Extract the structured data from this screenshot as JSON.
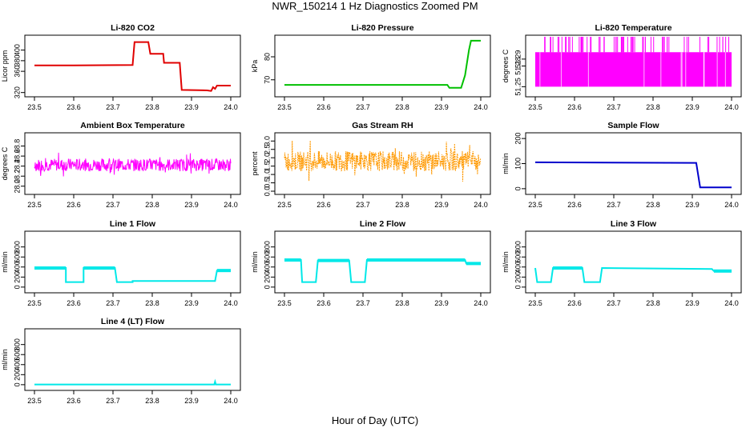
{
  "title": "NWR_150214  1 Hz Diagnostics Zoomed PM",
  "xlabel": "Hour of Day (UTC)",
  "chart_data": [
    {
      "type": "line",
      "title": "Li-820 CO2",
      "ylabel": "Licor ppm",
      "color": "#e00000",
      "xlim": [
        23.5,
        24.0
      ],
      "xticks": [
        "23.5",
        "23.6",
        "23.7",
        "23.8",
        "23.9",
        "24.0"
      ],
      "ylim": [
        318,
        422
      ],
      "yticks": [
        "320",
        "360",
        "380",
        "400"
      ],
      "series": [
        {
          "x": [
            23.5,
            23.6,
            23.75,
            23.755,
            23.79,
            23.795,
            23.828,
            23.83,
            23.87,
            23.875,
            23.94,
            23.95,
            23.955,
            23.96,
            23.965,
            24.0
          ],
          "y": [
            371,
            371,
            372,
            415,
            415,
            393,
            393,
            376,
            376,
            325,
            324,
            323,
            330,
            327,
            333,
            333
          ]
        }
      ]
    },
    {
      "type": "line",
      "title": "Li-820 Pressure",
      "ylabel": "kPa",
      "color": "#00c000",
      "xlim": [
        23.5,
        24.0
      ],
      "xticks": [
        "23.5",
        "23.6",
        "23.7",
        "23.8",
        "23.9",
        "24.0"
      ],
      "ylim": [
        64,
        88
      ],
      "yticks": [
        "70",
        "80"
      ],
      "series": [
        {
          "x": [
            23.5,
            23.915,
            23.92,
            23.95,
            23.96,
            23.97,
            23.975,
            24.0
          ],
          "y": [
            67.8,
            67.8,
            66.5,
            66.5,
            72,
            83,
            87,
            87
          ]
        }
      ]
    },
    {
      "type": "line",
      "title": "Li-820 Temperature",
      "ylabel": "degrees C",
      "color": "#ff00ff",
      "xlim": [
        23.5,
        24.0
      ],
      "xticks": [
        "23.5",
        "23.6",
        "23.7",
        "23.8",
        "23.9",
        "24.0"
      ],
      "ylim": [
        51.24,
        51.32
      ],
      "yticks": [
        "51.25",
        "51.28",
        "51.29"
      ],
      "series": [
        {
          "x": [
            23.5,
            24.0
          ],
          "y": [
            51.25,
            51.3
          ]
        }
      ]
    },
    {
      "type": "line",
      "title": "Ambient Box Temperature",
      "ylabel": "degrees C",
      "color": "#ff00ff",
      "xlim": [
        23.5,
        24.0
      ],
      "xticks": [
        "23.5",
        "23.6",
        "23.7",
        "23.8",
        "23.9",
        "24.0"
      ],
      "ylim": [
        27.9,
        29.0
      ],
      "yticks": [
        "28.0",
        "28.2",
        "28.4",
        "28.6",
        "28.8"
      ],
      "series": [
        {
          "x": [
            23.5,
            24.0
          ],
          "y": [
            28.3,
            28.55
          ]
        }
      ]
    },
    {
      "type": "line",
      "title": "Gas Stream RH",
      "ylabel": "percent",
      "color": "#ff9900",
      "xlim": [
        23.5,
        24.0
      ],
      "xticks": [
        "23.5",
        "23.6",
        "23.7",
        "23.8",
        "23.9",
        "24.0"
      ],
      "ylim": [
        0,
        3.3
      ],
      "yticks": [
        "0.0",
        "0.5",
        "1.0",
        "1.5",
        "2.0",
        "2.5",
        "3.0"
      ],
      "series": [
        {
          "x": [
            23.5,
            24.0
          ],
          "y": [
            1.2,
            2.4
          ]
        }
      ]
    },
    {
      "type": "line",
      "title": "Sample Flow",
      "ylabel": "ml/min",
      "color": "#0000cc",
      "xlim": [
        23.5,
        24.0
      ],
      "xticks": [
        "23.5",
        "23.6",
        "23.7",
        "23.8",
        "23.9",
        "24.0"
      ],
      "ylim": [
        -10,
        210
      ],
      "yticks": [
        "0",
        "100",
        "200"
      ],
      "series": [
        {
          "x": [
            23.5,
            23.91,
            23.92,
            24.0
          ],
          "y": [
            105,
            103,
            5,
            5
          ]
        }
      ]
    },
    {
      "type": "line",
      "title": "Line 1 Flow",
      "ylabel": "ml/min",
      "color": "#00e8e8",
      "xlim": [
        23.5,
        24.0
      ],
      "xticks": [
        "23.5",
        "23.6",
        "23.7",
        "23.8",
        "23.9",
        "24.0"
      ],
      "ylim": [
        -50,
        1050
      ],
      "yticks": [
        "0",
        "200",
        "400",
        "600",
        "800"
      ],
      "series": [
        {
          "x": [
            23.5,
            23.58,
            23.58,
            23.625,
            23.625,
            23.705,
            23.71,
            23.75,
            23.75,
            23.96,
            23.965,
            24.0
          ],
          "y": [
            380,
            380,
            100,
            100,
            380,
            380,
            100,
            100,
            120,
            120,
            330,
            330
          ]
        }
      ]
    },
    {
      "type": "line",
      "title": "Line 2 Flow",
      "ylabel": "ml/min",
      "color": "#00e8e8",
      "xlim": [
        23.5,
        24.0
      ],
      "xticks": [
        "23.5",
        "23.6",
        "23.7",
        "23.8",
        "23.9",
        "24.0"
      ],
      "ylim": [
        -50,
        1050
      ],
      "yticks": [
        "0",
        "200",
        "400",
        "600",
        "800"
      ],
      "series": [
        {
          "x": [
            23.5,
            23.542,
            23.545,
            23.58,
            23.585,
            23.665,
            23.67,
            23.705,
            23.71,
            23.96,
            23.963,
            24.0
          ],
          "y": [
            540,
            540,
            100,
            100,
            530,
            530,
            100,
            100,
            540,
            540,
            470,
            470
          ]
        }
      ]
    },
    {
      "type": "line",
      "title": "Line 3 Flow",
      "ylabel": "ml/min",
      "color": "#00e8e8",
      "xlim": [
        23.5,
        24.0
      ],
      "xticks": [
        "23.5",
        "23.6",
        "23.7",
        "23.8",
        "23.9",
        "24.0"
      ],
      "ylim": [
        -50,
        1050
      ],
      "yticks": [
        "0",
        "200",
        "400",
        "600",
        "800"
      ],
      "series": [
        {
          "x": [
            23.5,
            23.505,
            23.54,
            23.545,
            23.62,
            23.625,
            23.665,
            23.67,
            23.95,
            23.955,
            24.0
          ],
          "y": [
            380,
            100,
            100,
            380,
            380,
            100,
            100,
            380,
            360,
            320,
            320
          ]
        }
      ]
    },
    {
      "type": "line",
      "title": "Line 4 (LT) Flow",
      "ylabel": "ml/min",
      "color": "#00e8e8",
      "xlim": [
        23.5,
        24.0
      ],
      "xticks": [
        "23.5",
        "23.6",
        "23.7",
        "23.8",
        "23.9",
        "24.0"
      ],
      "ylim": [
        -50,
        1050
      ],
      "yticks": [
        "0",
        "200",
        "400",
        "600",
        "800"
      ],
      "series": [
        {
          "x": [
            23.5,
            23.958,
            23.96,
            23.962,
            24.0
          ],
          "y": [
            5,
            5,
            60,
            5,
            5
          ]
        }
      ]
    }
  ]
}
